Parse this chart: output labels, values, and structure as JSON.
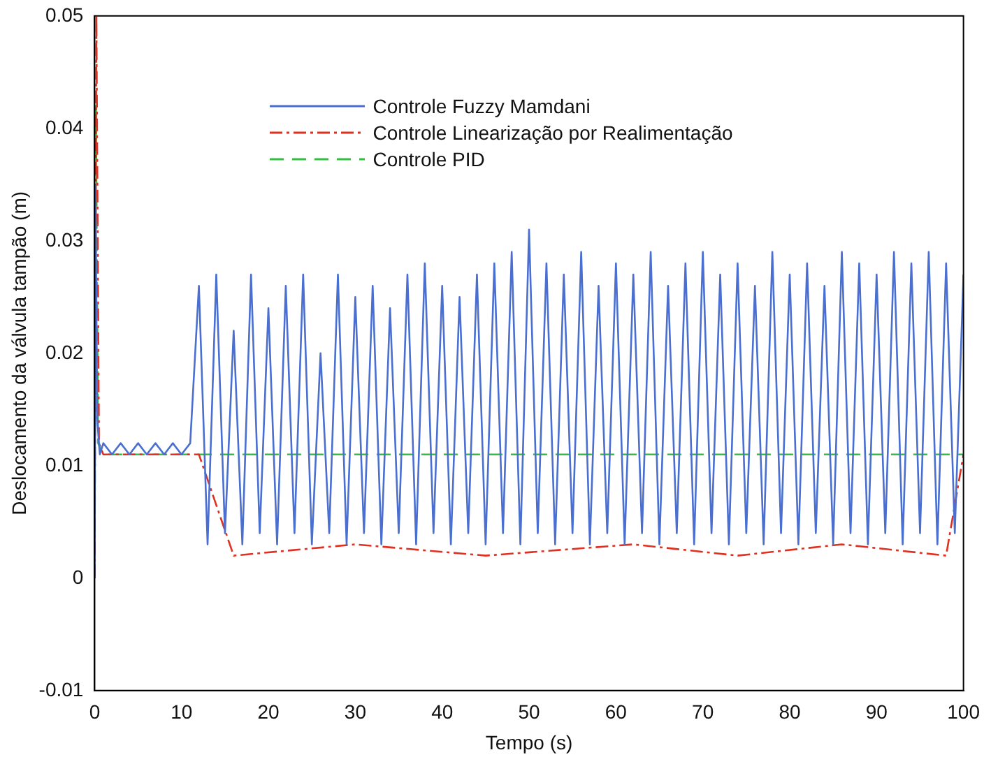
{
  "chart_data": {
    "type": "line",
    "xlabel": "Tempo (s)",
    "ylabel": "Deslocamento da válvula tampão (m)",
    "xlim": [
      0,
      100
    ],
    "xticks": [
      0,
      10,
      20,
      30,
      40,
      50,
      60,
      70,
      80,
      90,
      100
    ],
    "ylim": [
      -0.01,
      0.05
    ],
    "yticks": [
      -0.01,
      0,
      0.01,
      0.02,
      0.03,
      0.04,
      0.05
    ],
    "grid": false,
    "legend": "top",
    "marker": "none",
    "series": [
      {
        "name": "Controle Fuzzy Mamdani",
        "color": "#4a6fd0",
        "line_style": "solid",
        "x": [
          0,
          0.1,
          0.3,
          0.6,
          1,
          2,
          3,
          4,
          5,
          6,
          7,
          8,
          9,
          10,
          11,
          12,
          13,
          14,
          15,
          16,
          17,
          18,
          19,
          20,
          21,
          22,
          23,
          24,
          25,
          26,
          27,
          28,
          29,
          30,
          31,
          32,
          33,
          34,
          35,
          36,
          37,
          38,
          39,
          40,
          41,
          42,
          43,
          44,
          45,
          46,
          47,
          48,
          49,
          50,
          51,
          52,
          53,
          54,
          55,
          56,
          57,
          58,
          59,
          60,
          61,
          62,
          63,
          64,
          65,
          66,
          67,
          68,
          69,
          70,
          71,
          72,
          73,
          74,
          75,
          76,
          77,
          78,
          79,
          80,
          81,
          82,
          83,
          84,
          85,
          86,
          87,
          88,
          89,
          90,
          91,
          92,
          93,
          94,
          95,
          96,
          97,
          98,
          99,
          100
        ],
        "values": [
          0,
          0.035,
          0.014,
          0.011,
          0.012,
          0.011,
          0.012,
          0.011,
          0.012,
          0.011,
          0.012,
          0.011,
          0.012,
          0.011,
          0.012,
          0.026,
          0.003,
          0.027,
          0.004,
          0.022,
          0.003,
          0.027,
          0.004,
          0.024,
          0.003,
          0.026,
          0.004,
          0.027,
          0.003,
          0.02,
          0.004,
          0.027,
          0.003,
          0.025,
          0.004,
          0.026,
          0.003,
          0.024,
          0.004,
          0.027,
          0.003,
          0.028,
          0.004,
          0.026,
          0.003,
          0.025,
          0.004,
          0.027,
          0.003,
          0.028,
          0.004,
          0.029,
          0.003,
          0.031,
          0.004,
          0.028,
          0.003,
          0.027,
          0.004,
          0.029,
          0.003,
          0.026,
          0.004,
          0.028,
          0.003,
          0.027,
          0.004,
          0.029,
          0.003,
          0.026,
          0.004,
          0.028,
          0.003,
          0.029,
          0.004,
          0.027,
          0.003,
          0.028,
          0.004,
          0.026,
          0.003,
          0.029,
          0.004,
          0.027,
          0.003,
          0.028,
          0.004,
          0.026,
          0.003,
          0.029,
          0.004,
          0.028,
          0.003,
          0.027,
          0.004,
          0.029,
          0.003,
          0.028,
          0.004,
          0.029,
          0.003,
          0.028,
          0.004,
          0.027
        ]
      },
      {
        "name": "Controle Linearização por Realimentação",
        "color": "#e03020",
        "line_style": "dashdot",
        "x": [
          0,
          0.2,
          0.5,
          1,
          12,
          16,
          30,
          45,
          62,
          74,
          86,
          98,
          100
        ],
        "values": [
          0,
          0.05,
          0.012,
          0.011,
          0.011,
          0.002,
          0.003,
          0.002,
          0.003,
          0.002,
          0.003,
          0.002,
          0.011
        ]
      },
      {
        "name": "Controle PID",
        "color": "#30c040",
        "line_style": "dashed",
        "x": [
          0,
          0.15,
          0.4,
          1,
          12,
          100
        ],
        "values": [
          0,
          0.042,
          0.012,
          0.011,
          0.011,
          0.011
        ]
      }
    ]
  }
}
